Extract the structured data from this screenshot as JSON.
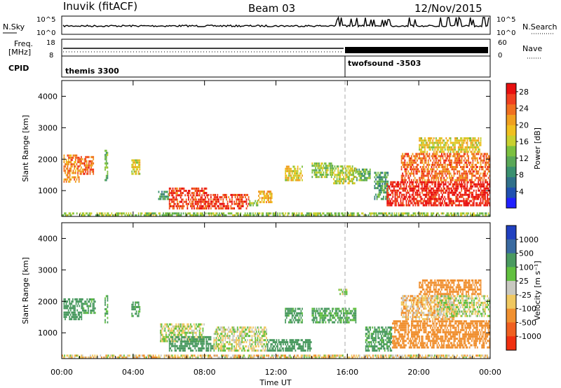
{
  "header": {
    "station": "Inuvik (fitACF)",
    "beam": "Beam 03",
    "date": "12/Nov/2015"
  },
  "strip_panels": {
    "nsky": {
      "label": "N.Sky",
      "ticks": [
        "10^5",
        "10^0"
      ]
    },
    "nsearch": {
      "label": "N.Search",
      "ticks": [
        "10^5",
        "10^0"
      ]
    },
    "freq": {
      "label_line1": "Freq.",
      "label_line2": "[MHz]",
      "ticks": [
        "18",
        "8"
      ]
    },
    "nave": {
      "label": "Nave",
      "ticks": [
        "60",
        "0"
      ]
    },
    "cpid": {
      "label": "CPID",
      "modes": [
        {
          "name": "themis 3300",
          "start_hour": 0
        },
        {
          "name": "twofsound -3503",
          "start_hour": 16
        }
      ]
    }
  },
  "chart_data": [
    {
      "type": "heatmap",
      "name": "power",
      "ylabel": "Slant Range [km]",
      "xlim_hours": [
        0,
        24
      ],
      "ylim_km": [
        180,
        4500
      ],
      "y_ticks": [
        "1000",
        "2000",
        "3000",
        "4000"
      ],
      "colorbar": {
        "title": "Power [dB]",
        "ticks": [
          "4",
          "8",
          "12",
          "16",
          "20",
          "24",
          "28"
        ],
        "range": [
          0,
          30
        ],
        "colors": [
          "#2020ff",
          "#2050b0",
          "#30708a",
          "#3a9070",
          "#5aa858",
          "#7cc040",
          "#c8d030",
          "#f0c020",
          "#f0a020",
          "#f07020",
          "#f04020",
          "#e81010"
        ]
      },
      "regions": [
        {
          "h0": 0.1,
          "h1": 1.0,
          "r0": 1250,
          "r1": 2150,
          "value": 22
        },
        {
          "h0": 1.0,
          "h1": 1.8,
          "r0": 1500,
          "r1": 2100,
          "value": 24
        },
        {
          "h0": 2.4,
          "h1": 2.6,
          "r0": 1300,
          "r1": 2300,
          "value": 12
        },
        {
          "h0": 3.9,
          "h1": 4.4,
          "r0": 1500,
          "r1": 2000,
          "value": 18
        },
        {
          "h0": 5.4,
          "h1": 6.0,
          "r0": 700,
          "r1": 1000,
          "value": 10
        },
        {
          "h0": 6.0,
          "h1": 8.2,
          "r0": 400,
          "r1": 1100,
          "value": 26
        },
        {
          "h0": 8.2,
          "h1": 10.5,
          "r0": 400,
          "r1": 900,
          "value": 26
        },
        {
          "h0": 10.5,
          "h1": 11.0,
          "r0": 500,
          "r1": 700,
          "value": 14
        },
        {
          "h0": 11.0,
          "h1": 11.8,
          "r0": 600,
          "r1": 1000,
          "value": 20
        },
        {
          "h0": 12.5,
          "h1": 13.5,
          "r0": 1300,
          "r1": 1800,
          "value": 18
        },
        {
          "h0": 14.0,
          "h1": 15.2,
          "r0": 1400,
          "r1": 1900,
          "value": 14
        },
        {
          "h0": 15.2,
          "h1": 16.5,
          "r0": 1200,
          "r1": 1800,
          "value": 16
        },
        {
          "h0": 16.5,
          "h1": 17.3,
          "r0": 1300,
          "r1": 1700,
          "value": 12
        },
        {
          "h0": 17.5,
          "h1": 18.3,
          "r0": 700,
          "r1": 1600,
          "value": 10
        },
        {
          "h0": 18.2,
          "h1": 24.0,
          "r0": 500,
          "r1": 1300,
          "value": 28
        },
        {
          "h0": 19.0,
          "h1": 24.0,
          "r0": 1300,
          "r1": 2200,
          "value": 24
        },
        {
          "h0": 20.0,
          "h1": 23.5,
          "r0": 2200,
          "r1": 2700,
          "value": 18
        },
        {
          "h0": 0.0,
          "h1": 24.0,
          "r0": 180,
          "r1": 300,
          "value": 14
        }
      ]
    },
    {
      "type": "heatmap",
      "name": "velocity",
      "ylabel": "Slant Range [km]",
      "xlabel": "Time UT",
      "x_ticks": [
        "00:00",
        "04:00",
        "08:00",
        "12:00",
        "16:00",
        "20:00",
        "00:00"
      ],
      "xlim_hours": [
        0,
        24
      ],
      "ylim_km": [
        180,
        4500
      ],
      "y_ticks": [
        "1000",
        "2000",
        "3000",
        "4000"
      ],
      "colorbar": {
        "title": "Velocity [m s⁻¹]",
        "ticks": [
          "1000",
          "500",
          "100",
          "25",
          "-25",
          "-100",
          "-500",
          "-1000"
        ],
        "colors": [
          "#2040c0",
          "#3a6aa0",
          "#4a9a60",
          "#62c040",
          "#c8c8c0",
          "#f0c860",
          "#f09030",
          "#f06020",
          "#f03010"
        ]
      },
      "regions": [
        {
          "h0": 0.1,
          "h1": 1.2,
          "r0": 1400,
          "r1": 2100,
          "value": 200
        },
        {
          "h0": 1.2,
          "h1": 1.9,
          "r0": 1600,
          "r1": 2100,
          "value": 150
        },
        {
          "h0": 2.4,
          "h1": 2.6,
          "r0": 1300,
          "r1": 2200,
          "value": 150
        },
        {
          "h0": 3.9,
          "h1": 4.4,
          "r0": 1500,
          "r1": 2000,
          "value": 150
        },
        {
          "h0": 5.5,
          "h1": 8.0,
          "r0": 700,
          "r1": 1300,
          "value": 0
        },
        {
          "h0": 6.0,
          "h1": 8.5,
          "r0": 400,
          "r1": 900,
          "value": 200
        },
        {
          "h0": 8.5,
          "h1": 11.5,
          "r0": 400,
          "r1": 1200,
          "value": 0
        },
        {
          "h0": 11.5,
          "h1": 14.0,
          "r0": 400,
          "r1": 800,
          "value": 200
        },
        {
          "h0": 12.5,
          "h1": 13.5,
          "r0": 1300,
          "r1": 1800,
          "value": 150
        },
        {
          "h0": 14.0,
          "h1": 16.5,
          "r0": 1300,
          "r1": 1800,
          "value": 150
        },
        {
          "h0": 15.5,
          "h1": 16.0,
          "r0": 2200,
          "r1": 2400,
          "value": 0
        },
        {
          "h0": 17.0,
          "h1": 18.5,
          "r0": 400,
          "r1": 1200,
          "value": 150
        },
        {
          "h0": 18.5,
          "h1": 24.0,
          "r0": 500,
          "r1": 1400,
          "value": -400
        },
        {
          "h0": 19.0,
          "h1": 22.0,
          "r0": 1400,
          "r1": 2200,
          "value": -80
        },
        {
          "h0": 21.0,
          "h1": 24.0,
          "r0": 1500,
          "r1": 2200,
          "value": 0
        },
        {
          "h0": 20.0,
          "h1": 23.5,
          "r0": 2200,
          "r1": 2700,
          "value": -200
        },
        {
          "h0": 0.0,
          "h1": 24.0,
          "r0": 180,
          "r1": 300,
          "value": -50
        }
      ]
    }
  ]
}
